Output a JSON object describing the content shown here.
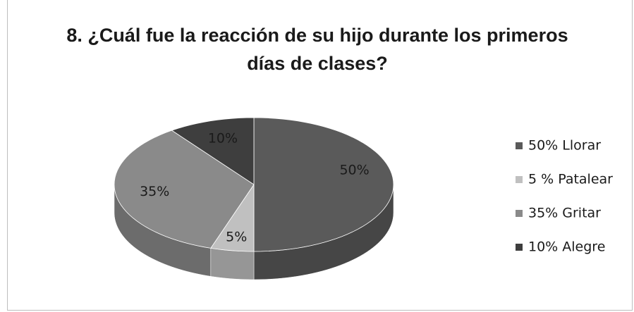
{
  "chart_data": {
    "type": "pie",
    "title": "8. ¿Cuál fue la reacción de su hijo durante los primeros días de clases?",
    "categories": [
      "50% Llorar",
      "5 % Patalear",
      "35% Gritar",
      "10% Alegre"
    ],
    "values": [
      50,
      5,
      35,
      10
    ],
    "value_labels": [
      "50%",
      "5%",
      "35%",
      "10%"
    ],
    "colors": [
      "#5a5a5a",
      "#c0c0c0",
      "#8a8a8a",
      "#3e3e3e"
    ],
    "legend": "right"
  }
}
